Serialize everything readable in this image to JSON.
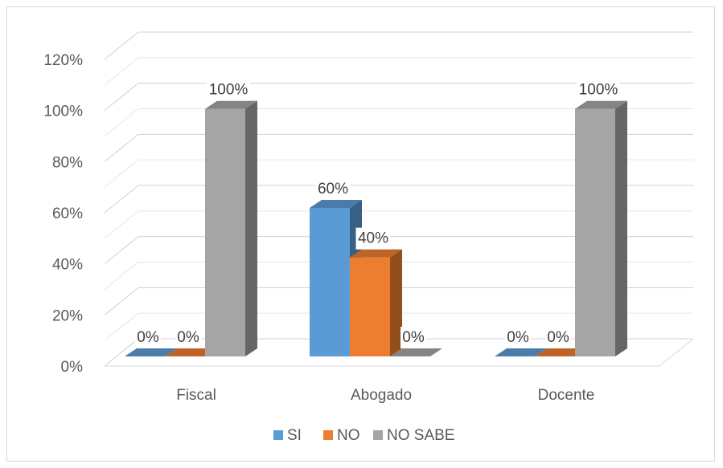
{
  "chart_data": {
    "type": "bar",
    "title": "",
    "xlabel": "",
    "ylabel": "",
    "categories": [
      "Fiscal",
      "Abogado",
      "Docente"
    ],
    "series": [
      {
        "name": "SI",
        "values": [
          0,
          60,
          0
        ],
        "labels": [
          "0%",
          "60%",
          "0%"
        ],
        "color": "#5b9bd5"
      },
      {
        "name": "NO",
        "values": [
          0,
          40,
          0
        ],
        "labels": [
          "0%",
          "40%",
          "0%"
        ],
        "color": "#ed7d31"
      },
      {
        "name": "NO SABE",
        "values": [
          100,
          0,
          100
        ],
        "labels": [
          "100%",
          "0%",
          "100%"
        ],
        "color": "#a5a5a5"
      }
    ],
    "ylim": [
      0,
      120
    ],
    "yticks": [
      "0%",
      "20%",
      "40%",
      "60%",
      "80%",
      "100%",
      "120%"
    ],
    "grid": true,
    "three_d": true,
    "legend_position": "bottom"
  }
}
